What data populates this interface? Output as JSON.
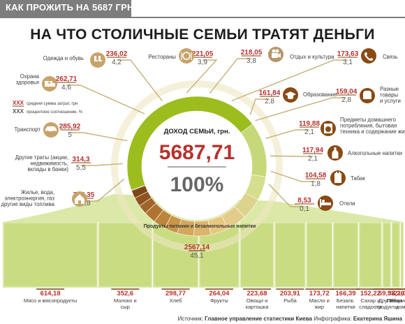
{
  "header": {
    "label": "КАК ПРОЖИТЬ НА 5687 ГРН"
  },
  "chart_data": {
    "type": "donut+bar",
    "title": "НА ЧТО СТОЛИЧНЫЕ СЕМЬИ ТРАТЯТ ДЕНЬГИ",
    "center": {
      "label": "ДОХОД СЕМЬИ, грн.",
      "value": "5687,71",
      "percent": "100%"
    },
    "legend": [
      {
        "sample": "XXX",
        "text": "средняя сумма затрат, грн"
      },
      {
        "sample": "XXX",
        "text": "процентное соотношение, %"
      }
    ],
    "slices": [
      {
        "label": "Одежда и обувь",
        "value": "236,02",
        "percent": "4,2",
        "icon": "shoes-icon"
      },
      {
        "label": "Рестораны",
        "value": "221,05",
        "percent": "3,9",
        "icon": "restaurant-icon"
      },
      {
        "label": "Отдых и культура",
        "value": "218,05",
        "percent": "3,8",
        "icon": "film-camera-icon"
      },
      {
        "label": "Связь",
        "value": "173,63",
        "percent": "3,1",
        "icon": "phone-icon"
      },
      {
        "label": "Охрана здоровья",
        "value": "262,71",
        "percent": "4,6",
        "icon": "ambulance-icon"
      },
      {
        "label": "Образование",
        "value": "161,84",
        "percent": "2,8",
        "icon": "graduation-cap-icon"
      },
      {
        "label": "Разные товары и услуги",
        "value": "159,04",
        "percent": "2,8",
        "icon": "box-icon"
      },
      {
        "label": "Транспорт",
        "value": "285,92",
        "percent": "5",
        "icon": "car-icon"
      },
      {
        "label": "Предметы домашнего потребления, бытовая техника и содержание жилья",
        "value": "119,88",
        "percent": "2,1",
        "icon": "washing-machine-icon"
      },
      {
        "label": "Другие траты (акции, недвижимость, вклады в банки)",
        "value": "314,3",
        "percent": "5,5",
        "icon": ""
      },
      {
        "label": "Алкогольные напитки",
        "value": "117,94",
        "percent": "2,1",
        "icon": "bottle-icon"
      },
      {
        "label": "Жилье, вода, электроэнергия, газ и другие виды топлива",
        "value": "724,35",
        "percent": "12,8",
        "icon": "house-icon"
      },
      {
        "label": "Табак",
        "value": "104,58",
        "percent": "1,8",
        "icon": "cigarettes-icon"
      },
      {
        "label": "Отели",
        "value": "8,53",
        "percent": "0,1",
        "icon": "bed-icon"
      },
      {
        "label": "Продукты питания и безалкогольные напитки",
        "value": "2567,14",
        "percent": "45,1",
        "icon": ""
      }
    ],
    "food_breakdown": [
      {
        "value": "614,18",
        "label": "Мясо и мясопродукты"
      },
      {
        "value": "352,6",
        "label": "Молоко и сыр"
      },
      {
        "value": "298,77",
        "label": "Хлеб"
      },
      {
        "value": "264,04",
        "label": "Фрукты"
      },
      {
        "value": "223,68",
        "label": "Овощи и картошка"
      },
      {
        "value": "203,91",
        "label": "Рыба"
      },
      {
        "value": "173,72",
        "label": "Масло и жир"
      },
      {
        "value": "166,39",
        "label": "Безалк. напитки"
      },
      {
        "value": "152,22",
        "label": "Сахар и сладости"
      },
      {
        "value": "59,37",
        "label": "Другие продукты"
      },
      {
        "value": "58,26",
        "label": "Яйца"
      },
      {
        "value": "21,05",
        "label": "Питание вне дома"
      }
    ],
    "colors": {
      "accent": "#b7312c",
      "green": "#9dbd1e",
      "bar": "#c8dc7e",
      "brown": "#7a3f10"
    }
  },
  "source": {
    "prefix": "Источник:",
    "name": "Главное управление статистики Киева",
    "infographic": "Инфографика:",
    "author": "Екатерина Яшина"
  }
}
